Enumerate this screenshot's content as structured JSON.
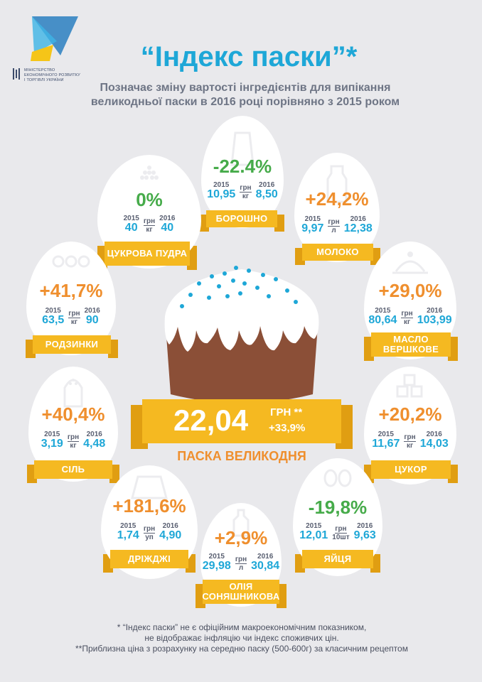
{
  "header": {
    "title": "“Індекс паски”*",
    "subtitle_line1": "Позначає зміну вартості інгредієнтів для випікання",
    "subtitle_line2": "великодньої паски в 2016 році порівняно з 2015 роком",
    "ministry_line1": "МІНІСТЕРСТВО",
    "ministry_line2": "ЕКОНОМІЧНОГО РОЗВИТКУ",
    "ministry_line3": "І ТОРГІВЛІ УКРАЇНИ"
  },
  "year_2015": "2015",
  "year_2016": "2016",
  "currency": "грн",
  "ingredients": [
    {
      "name": "ЦУКРОВА ПУДРА",
      "pct": "0%",
      "trend": "zero",
      "p2015": "40",
      "p2016": "40",
      "unit": "кг"
    },
    {
      "name": "БОРОШНО",
      "pct": "-22.4%",
      "trend": "down",
      "p2015": "10,95",
      "p2016": "8,50",
      "unit": "кг"
    },
    {
      "name": "МОЛОКО",
      "pct": "+24,2%",
      "trend": "up",
      "p2015": "9,97",
      "p2016": "12,38",
      "unit": "л"
    },
    {
      "name": "РОДЗИНКИ",
      "pct": "+41,7%",
      "trend": "up",
      "p2015": "63,5",
      "p2016": "90",
      "unit": "кг"
    },
    {
      "name": "МАСЛО ВЕРШКОВЕ",
      "pct": "+29,0%",
      "trend": "up",
      "p2015": "80,64",
      "p2016": "103,99",
      "unit": "кг"
    },
    {
      "name": "СІЛЬ",
      "pct": "+40,4%",
      "trend": "up",
      "p2015": "3,19",
      "p2016": "4,48",
      "unit": "кг"
    },
    {
      "name": "ЦУКОР",
      "pct": "+20,2%",
      "trend": "up",
      "p2015": "11,67",
      "p2016": "14,03",
      "unit": "кг"
    },
    {
      "name": "ДРІЖДЖІ",
      "pct": "+181,6%",
      "trend": "up",
      "p2015": "1,74",
      "p2016": "4,90",
      "unit": "уп"
    },
    {
      "name": "ОЛІЯ СОНЯШНИКОВА",
      "pct": "+2,9%",
      "trend": "up",
      "p2015": "29,98",
      "p2016": "30,84",
      "unit": "л"
    },
    {
      "name": "ЯЙЦЯ",
      "pct": "-19,8%",
      "trend": "down",
      "p2015": "12,01",
      "p2016": "9,63",
      "unit": "10шт"
    }
  ],
  "center": {
    "price": "22,04",
    "unit": "ГРН **",
    "pct": "+33,9%",
    "label": "ПАСКА ВЕЛИКОДНЯ"
  },
  "footnotes": {
    "line1": "* “Індекс паски” не є офіційним макроекономічним показником,",
    "line2": "не відображає інфляцію чи індекс споживчих цін.",
    "line3": "**Приблизна ціна з розрахунку на середню паску (500-600г) за класичним рецептом"
  },
  "colors": {
    "accent_blue": "#1ea7d7",
    "orange": "#ef8f2e",
    "green": "#46ab4a",
    "yellow": "#f5b921",
    "background": "#e9e9ec"
  }
}
